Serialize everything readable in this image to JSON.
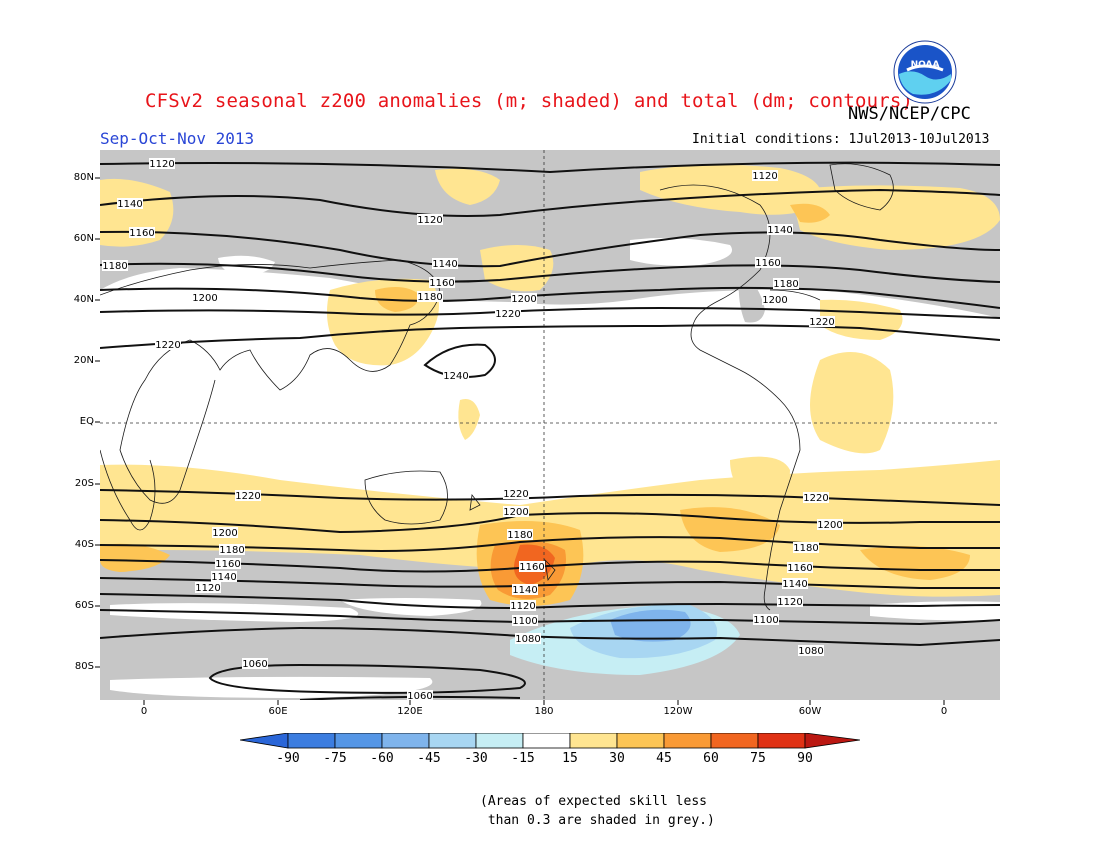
{
  "header": {
    "title": "CFSv2 seasonal z200 anomalies (m; shaded) and total (dm; contours)",
    "season": "Sep-Oct-Nov 2013",
    "agency": "NWS/NCEP/CPC",
    "initial_conditions": "Initial conditions: 1Jul2013-10Jul2013",
    "logo_text": "NOAA"
  },
  "map": {
    "lat_labels": [
      "80N",
      "60N",
      "40N",
      "20N",
      "EQ",
      "20S",
      "40S",
      "60S",
      "80S"
    ],
    "lon_labels": [
      "0",
      "60E",
      "120E",
      "180",
      "120W",
      "60W",
      "0"
    ],
    "contour_labels": {
      "c1120n_a": "1120",
      "c1120n_b": "1120",
      "c1120n_c": "1120",
      "c1140n_a": "1140",
      "c1140n_b": "1140",
      "c1140n_c": "1140",
      "c1160n_a": "1160",
      "c1160n_b": "1160",
      "c1160n_c": "1160",
      "c1180n_a": "1180",
      "c1180n_b": "1180",
      "c1180n_c": "1180",
      "c1200n_a": "1200",
      "c1200n_b": "1200",
      "c1200n_c": "1200",
      "c1220n_a": "1220",
      "c1220n_b": "1220",
      "c1220n_c": "1220",
      "c1240n": "1240",
      "c1220s_a": "1220",
      "c1220s_b": "1220",
      "c1220s_c": "1220",
      "c1200s_a": "1200",
      "c1200s_b": "1200",
      "c1200s_c": "1200",
      "c1180s_a": "1180",
      "c1180s_b": "1180",
      "c1180s_c": "1180",
      "c1160s_a": "1160",
      "c1160s_b": "1160",
      "c1160s_c": "1160",
      "c1140s_a": "1140",
      "c1140s_b": "1140",
      "c1140s_c": "1140",
      "c1120s_a": "1120",
      "c1120s_b": "1120",
      "c1120s_c": "1120",
      "c1100s_a": "1100",
      "c1100s_b": "1100",
      "c1080s_a": "1080",
      "c1080s_b": "1080",
      "c1060s_a": "1060",
      "c1060s_b": "1060"
    }
  },
  "colorbar": {
    "labels": [
      "-90",
      "-75",
      "-60",
      "-45",
      "-30",
      "-15",
      "15",
      "30",
      "45",
      "60",
      "75",
      "90"
    ],
    "colors": [
      "#2a66d8",
      "#3c7de0",
      "#5596e6",
      "#7fb4ec",
      "#a8d6f2",
      "#c6eef4",
      "#ffffff",
      "#ffe591",
      "#fdc555",
      "#f99a35",
      "#f16620",
      "#e03215",
      "#bb1812"
    ]
  },
  "note": "(Areas of expected skill less\n than 0.3 are shaded in grey.)"
}
